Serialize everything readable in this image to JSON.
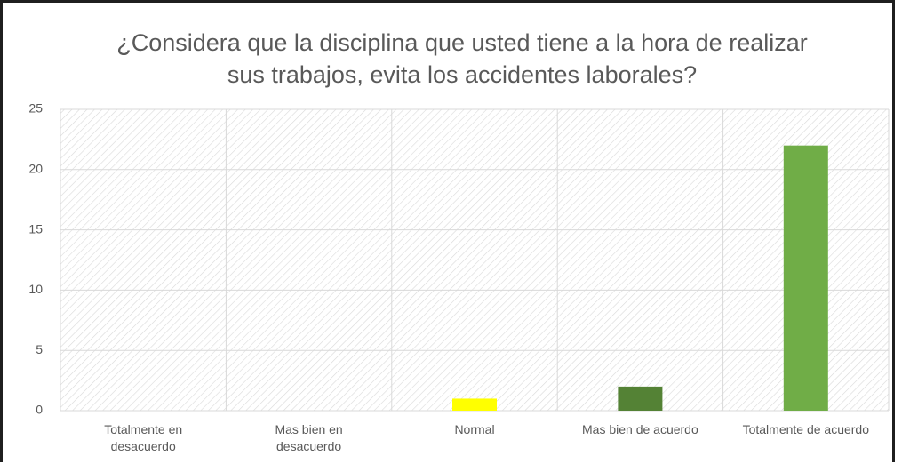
{
  "chart_data": {
    "type": "bar",
    "title": "¿Considera que la disciplina que usted tiene a la hora de realizar sus trabajos, evita los accidentes laborales?",
    "categories": [
      "Totalmente en desacuerdo",
      "Mas bien en desacuerdo",
      "Normal",
      "Mas bien de acuerdo",
      "Totalmente de acuerdo"
    ],
    "values": [
      0,
      0,
      1,
      2,
      22
    ],
    "colors": [
      "#70ad47",
      "#70ad47",
      "#ffff00",
      "#548235",
      "#70ad47"
    ],
    "ylim": [
      0,
      25
    ],
    "yticks": [
      0,
      5,
      10,
      15,
      20,
      25
    ],
    "grid": true
  }
}
